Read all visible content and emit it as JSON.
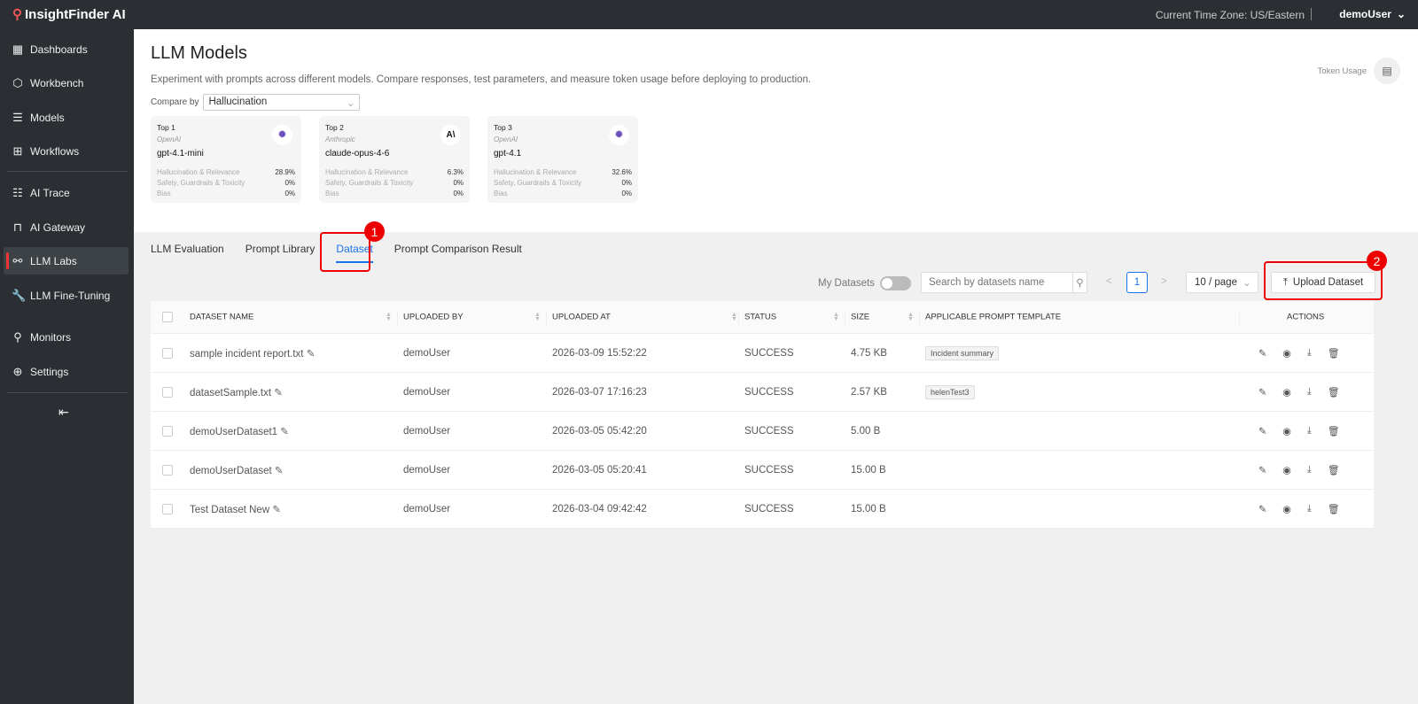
{
  "app": {
    "name": "InsightFinder AI",
    "timezone": "Current Time Zone: US/Eastern",
    "user": "demoUser"
  },
  "sidebar": {
    "items": [
      {
        "label": "Dashboards",
        "icon": "dashboard-icon",
        "glyph": "▦"
      },
      {
        "label": "Workbench",
        "icon": "workbench-icon",
        "glyph": "⬡"
      },
      {
        "label": "Models",
        "icon": "list-icon",
        "glyph": "☰"
      },
      {
        "label": "Workflows",
        "icon": "workflow-icon",
        "glyph": "⊞"
      },
      {
        "label": "AI Trace",
        "icon": "trace-icon",
        "glyph": "☷"
      },
      {
        "label": "AI Gateway",
        "icon": "gateway-icon",
        "glyph": "⊓"
      },
      {
        "label": "LLM Labs",
        "icon": "labs-icon",
        "glyph": "⚯"
      },
      {
        "label": "LLM Fine-Tuning",
        "icon": "wrench-icon",
        "glyph": "🔧"
      },
      {
        "label": "Monitors",
        "icon": "monitor-icon",
        "glyph": "⚲"
      },
      {
        "label": "Settings",
        "icon": "plus-circle-icon",
        "glyph": "⊕"
      }
    ],
    "active": "LLM Labs",
    "collapse": "⇤"
  },
  "header": {
    "title": "LLM Models",
    "description": "Experiment with prompts across different models. Compare responses, test parameters, and measure token usage before deploying to production.",
    "compare_label": "Compare by",
    "compare_value": "Hallucination",
    "token_usage": "Token Usage"
  },
  "cards": [
    {
      "rank": "Top 1",
      "provider": "OpenAI",
      "model": "gpt-4.1-mini",
      "logo": "openai-logo",
      "logo_text": "✺",
      "metrics": [
        {
          "label": "Hallucination & Relevance",
          "value": "28.9%"
        },
        {
          "label": "Safety, Guardrails & Toxicity",
          "value": "0%"
        },
        {
          "label": "Bias",
          "value": "0%"
        }
      ]
    },
    {
      "rank": "Top 2",
      "provider": "Anthropic",
      "model": "claude-opus-4-6",
      "logo": "anthropic-logo",
      "logo_text": "A\\",
      "metrics": [
        {
          "label": "Hallucination & Relevance",
          "value": "6.3%"
        },
        {
          "label": "Safety, Guardrails & Toxicity",
          "value": "0%"
        },
        {
          "label": "Bias",
          "value": "0%"
        }
      ]
    },
    {
      "rank": "Top 3",
      "provider": "OpenAI",
      "model": "gpt-4.1",
      "logo": "openai-logo",
      "logo_text": "✺",
      "metrics": [
        {
          "label": "Hallucination & Relevance",
          "value": "32.6%"
        },
        {
          "label": "Safety, Guardrails & Toxicity",
          "value": "0%"
        },
        {
          "label": "Bias",
          "value": "0%"
        }
      ]
    }
  ],
  "tabs": [
    {
      "label": "LLM Evaluation"
    },
    {
      "label": "Prompt Library"
    },
    {
      "label": "Dataset"
    },
    {
      "label": "Prompt Comparison Result"
    }
  ],
  "active_tab": "Dataset",
  "toolbar": {
    "my_datasets": "My Datasets",
    "my_datasets_on": false,
    "search_placeholder": "Search by datasets name",
    "page": "1",
    "prev": "<",
    "next": ">",
    "page_size": "10 / page",
    "upload": "Upload Dataset"
  },
  "table": {
    "columns": [
      "DATASET NAME",
      "UPLOADED BY",
      "UPLOADED AT",
      "STATUS",
      "SIZE",
      "APPLICABLE PROMPT TEMPLATE",
      "ACTIONS"
    ],
    "rows": [
      {
        "name": "sample incident report.txt",
        "by": "demoUser",
        "at": "2026-03-09 15:52:22",
        "status": "SUCCESS",
        "size": "4.75 KB",
        "template": "Incident summary"
      },
      {
        "name": "datasetSample.txt",
        "by": "demoUser",
        "at": "2026-03-07 17:16:23",
        "status": "SUCCESS",
        "size": "2.57 KB",
        "template": "helenTest3"
      },
      {
        "name": "demoUserDataset1",
        "by": "demoUser",
        "at": "2026-03-05 05:42:20",
        "status": "SUCCESS",
        "size": "5.00 B",
        "template": ""
      },
      {
        "name": "demoUserDataset",
        "by": "demoUser",
        "at": "2026-03-05 05:20:41",
        "status": "SUCCESS",
        "size": "15.00 B",
        "template": ""
      },
      {
        "name": "Test Dataset New",
        "by": "demoUser",
        "at": "2026-03-04 09:42:42",
        "status": "SUCCESS",
        "size": "15.00 B",
        "template": ""
      }
    ]
  },
  "annotations": [
    "1",
    "2"
  ],
  "colors": {
    "accent": "#1a73e8",
    "sidebar": "#2b2f33",
    "annotation": "#e00000"
  }
}
